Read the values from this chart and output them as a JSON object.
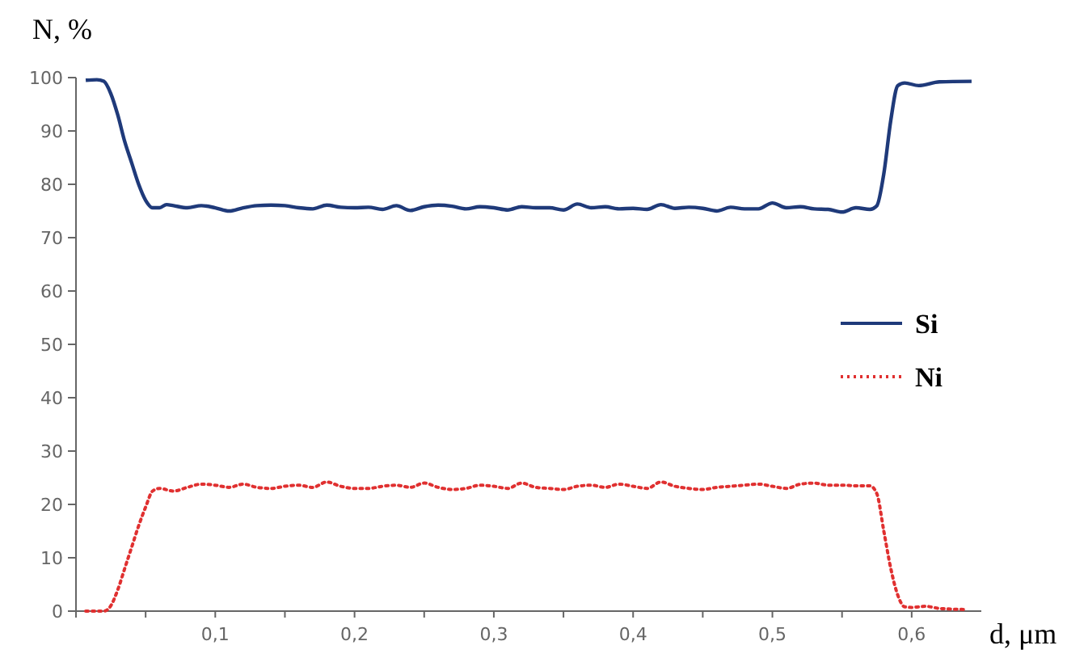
{
  "chart_data": {
    "type": "line",
    "ylabel": "N, %",
    "xlabel": "d, μm",
    "xlim": [
      0,
      0.65
    ],
    "ylim": [
      0,
      100
    ],
    "yticks": [
      0,
      10,
      20,
      30,
      40,
      50,
      60,
      70,
      80,
      90,
      100
    ],
    "xticks": [
      {
        "value": 0,
        "label": null
      },
      {
        "value": 0.05,
        "label": null
      },
      {
        "value": 0.1,
        "label": "0,1"
      },
      {
        "value": 0.15,
        "label": null
      },
      {
        "value": 0.2,
        "label": "0,2"
      },
      {
        "value": 0.25,
        "label": null
      },
      {
        "value": 0.3,
        "label": "0,3"
      },
      {
        "value": 0.35,
        "label": null
      },
      {
        "value": 0.4,
        "label": "0,4"
      },
      {
        "value": 0.45,
        "label": null
      },
      {
        "value": 0.5,
        "label": "0,5"
      },
      {
        "value": 0.55,
        "label": null
      },
      {
        "value": 0.6,
        "label": "0,6"
      }
    ],
    "grid": false,
    "legend": "right",
    "marker": "none",
    "series": [
      {
        "name": "Si",
        "color": "#1f3a7a",
        "line_style": "solid",
        "x": [
          0.007,
          0.015,
          0.02,
          0.025,
          0.03,
          0.035,
          0.04,
          0.045,
          0.05,
          0.055,
          0.06,
          0.065,
          0.07,
          0.08,
          0.09,
          0.1,
          0.11,
          0.12,
          0.13,
          0.14,
          0.15,
          0.16,
          0.17,
          0.18,
          0.19,
          0.2,
          0.21,
          0.22,
          0.23,
          0.24,
          0.25,
          0.26,
          0.27,
          0.28,
          0.29,
          0.3,
          0.31,
          0.32,
          0.33,
          0.34,
          0.35,
          0.36,
          0.37,
          0.38,
          0.39,
          0.4,
          0.41,
          0.42,
          0.43,
          0.44,
          0.45,
          0.46,
          0.47,
          0.48,
          0.49,
          0.5,
          0.51,
          0.52,
          0.53,
          0.54,
          0.55,
          0.56,
          0.57,
          0.575,
          0.58,
          0.585,
          0.59,
          0.595,
          0.605,
          0.62,
          0.643
        ],
        "values": [
          99.5,
          99.6,
          99.3,
          97,
          93,
          88,
          84,
          80,
          77,
          75.6,
          75.6,
          76.2,
          76,
          75.6,
          76,
          75.6,
          75,
          75.6,
          76,
          76.1,
          76,
          75.6,
          75.4,
          76.1,
          75.7,
          75.6,
          75.7,
          75.3,
          76,
          75.1,
          75.8,
          76.1,
          75.9,
          75.4,
          75.8,
          75.6,
          75.2,
          75.8,
          75.6,
          75.6,
          75.2,
          76.3,
          75.6,
          75.8,
          75.4,
          75.5,
          75.3,
          76.2,
          75.5,
          75.7,
          75.5,
          75,
          75.7,
          75.4,
          75.4,
          76.5,
          75.6,
          75.8,
          75.4,
          75.3,
          74.8,
          75.6,
          75.3,
          76,
          82,
          92,
          98.5,
          99,
          98.5,
          99.2,
          99.3
        ]
      },
      {
        "name": "Ni",
        "color": "#e03030",
        "line_style": "dotted",
        "x": [
          0.007,
          0.02,
          0.025,
          0.03,
          0.035,
          0.04,
          0.045,
          0.05,
          0.055,
          0.06,
          0.07,
          0.08,
          0.09,
          0.1,
          0.11,
          0.12,
          0.13,
          0.14,
          0.15,
          0.16,
          0.17,
          0.18,
          0.19,
          0.2,
          0.21,
          0.22,
          0.23,
          0.24,
          0.25,
          0.26,
          0.27,
          0.28,
          0.29,
          0.3,
          0.31,
          0.32,
          0.33,
          0.34,
          0.35,
          0.36,
          0.37,
          0.38,
          0.39,
          0.4,
          0.41,
          0.42,
          0.43,
          0.44,
          0.45,
          0.46,
          0.47,
          0.48,
          0.49,
          0.5,
          0.51,
          0.52,
          0.53,
          0.54,
          0.55,
          0.56,
          0.57,
          0.575,
          0.58,
          0.585,
          0.59,
          0.595,
          0.6,
          0.61,
          0.62,
          0.64
        ],
        "values": [
          0,
          0,
          1,
          4,
          8,
          12,
          16,
          19.5,
          22.5,
          23,
          22.5,
          23.2,
          23.8,
          23.6,
          23.2,
          23.8,
          23.2,
          23,
          23.4,
          23.6,
          23.2,
          24.2,
          23.4,
          23,
          23,
          23.4,
          23.6,
          23.2,
          24,
          23.2,
          22.8,
          23,
          23.6,
          23.4,
          23,
          24,
          23.2,
          23,
          22.8,
          23.4,
          23.6,
          23.2,
          23.8,
          23.4,
          23,
          24.2,
          23.4,
          23,
          22.8,
          23.2,
          23.4,
          23.6,
          23.8,
          23.4,
          23,
          23.8,
          24,
          23.6,
          23.6,
          23.5,
          23.5,
          22,
          15,
          8,
          3,
          0.8,
          0.7,
          0.9,
          0.5,
          0.3
        ]
      }
    ]
  }
}
